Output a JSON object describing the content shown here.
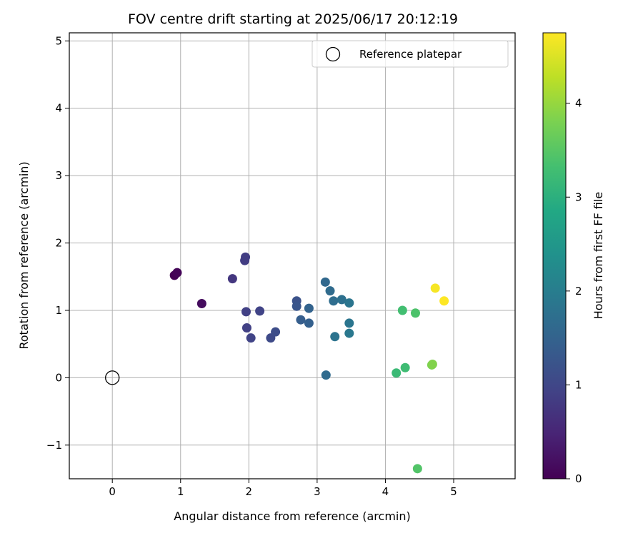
{
  "chart_data": {
    "type": "scatter",
    "title": "FOV centre drift starting at 2025/06/17 20:12:19",
    "xlabel": "Angular distance from reference (arcmin)",
    "ylabel": "Rotation from reference (arcmin)",
    "xlim": [
      -0.63,
      5.9
    ],
    "ylim": [
      -1.5,
      5.12
    ],
    "xticks": [
      0,
      1,
      2,
      3,
      4,
      5
    ],
    "xtick_labels": [
      "0",
      "1",
      "2",
      "3",
      "4",
      "5"
    ],
    "yticks": [
      -1,
      0,
      1,
      2,
      3,
      4,
      5
    ],
    "ytick_labels": [
      "−1",
      "0",
      "1",
      "2",
      "3",
      "4",
      "5"
    ],
    "grid": true,
    "legend": {
      "position": "top-right",
      "entries": [
        "Reference platepar"
      ]
    },
    "reference_point": {
      "x": 0,
      "y": 0,
      "label": "Reference platepar"
    },
    "colorbar": {
      "label": "Hours from first FF file",
      "range": [
        0,
        4.75
      ],
      "ticks": [
        0,
        1,
        2,
        3,
        4
      ],
      "tick_labels": [
        "0",
        "1",
        "2",
        "3",
        "4"
      ],
      "colormap": "viridis"
    },
    "points": [
      {
        "x": 0.91,
        "y": 1.52,
        "hours": 0.0
      },
      {
        "x": 0.95,
        "y": 1.56,
        "hours": 0.05
      },
      {
        "x": 1.31,
        "y": 1.1,
        "hours": 0.15
      },
      {
        "x": 1.76,
        "y": 1.47,
        "hours": 0.75
      },
      {
        "x": 1.95,
        "y": 1.79,
        "hours": 0.85
      },
      {
        "x": 1.94,
        "y": 1.74,
        "hours": 0.85
      },
      {
        "x": 1.96,
        "y": 0.98,
        "hours": 0.9
      },
      {
        "x": 2.16,
        "y": 0.99,
        "hours": 0.95
      },
      {
        "x": 1.97,
        "y": 0.74,
        "hours": 0.9
      },
      {
        "x": 2.03,
        "y": 0.59,
        "hours": 0.95
      },
      {
        "x": 2.32,
        "y": 0.59,
        "hours": 1.05
      },
      {
        "x": 2.39,
        "y": 0.68,
        "hours": 1.1
      },
      {
        "x": 2.7,
        "y": 1.14,
        "hours": 1.2
      },
      {
        "x": 2.7,
        "y": 1.06,
        "hours": 1.25
      },
      {
        "x": 2.76,
        "y": 0.86,
        "hours": 1.4
      },
      {
        "x": 2.88,
        "y": 0.81,
        "hours": 1.45
      },
      {
        "x": 2.88,
        "y": 1.03,
        "hours": 1.5
      },
      {
        "x": 3.12,
        "y": 1.42,
        "hours": 1.6
      },
      {
        "x": 3.19,
        "y": 1.29,
        "hours": 1.65
      },
      {
        "x": 3.24,
        "y": 1.14,
        "hours": 1.7
      },
      {
        "x": 3.36,
        "y": 1.16,
        "hours": 1.75
      },
      {
        "x": 3.47,
        "y": 1.11,
        "hours": 1.85
      },
      {
        "x": 3.47,
        "y": 0.81,
        "hours": 1.85
      },
      {
        "x": 3.47,
        "y": 0.66,
        "hours": 1.9
      },
      {
        "x": 3.26,
        "y": 0.61,
        "hours": 1.8
      },
      {
        "x": 3.13,
        "y": 0.04,
        "hours": 1.65
      },
      {
        "x": 4.25,
        "y": 1.0,
        "hours": 3.3
      },
      {
        "x": 4.44,
        "y": 0.96,
        "hours": 3.4
      },
      {
        "x": 4.16,
        "y": 0.07,
        "hours": 3.2
      },
      {
        "x": 4.29,
        "y": 0.15,
        "hours": 3.25
      },
      {
        "x": 4.68,
        "y": 0.19,
        "hours": 3.8
      },
      {
        "x": 4.69,
        "y": 0.2,
        "hours": 3.85
      },
      {
        "x": 4.47,
        "y": -1.35,
        "hours": 3.45
      },
      {
        "x": 4.73,
        "y": 1.33,
        "hours": 4.7
      },
      {
        "x": 4.86,
        "y": 1.14,
        "hours": 4.75
      }
    ]
  }
}
